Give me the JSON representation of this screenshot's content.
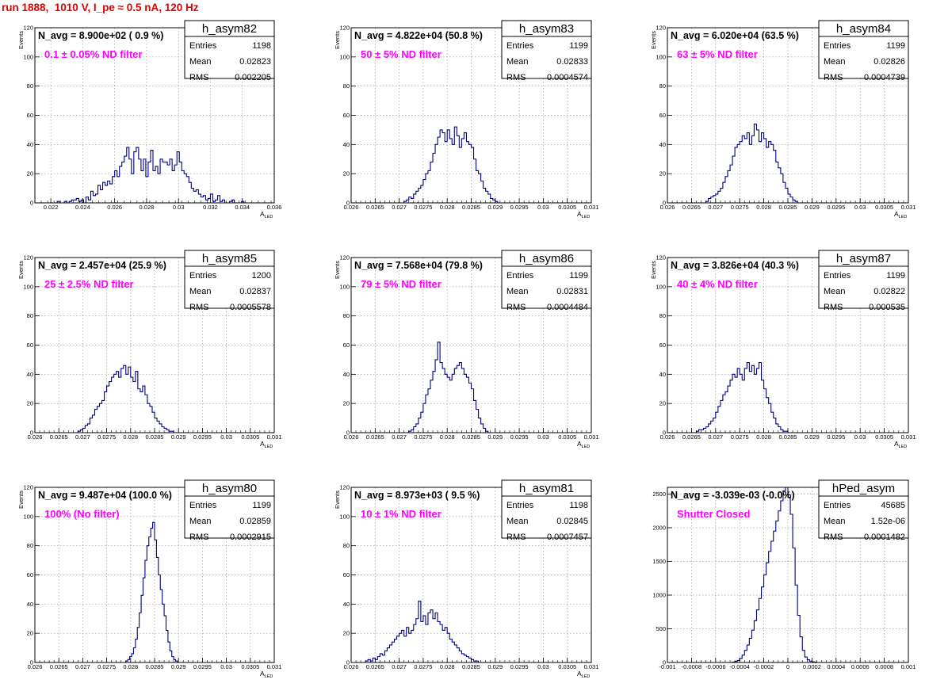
{
  "page": {
    "title": "run 1888,  1010 V, I_pe ≈ 0.5 nA, 120 Hz"
  },
  "colors": {
    "line": "#000080",
    "title": "#e00000",
    "annotation": "#ff00ff",
    "grid": "#9a9a9a"
  },
  "chart_data": [
    {
      "type": "histogram",
      "name": "h_asym82",
      "title": "N_avg = 8.900e+02 ( 0.9 %)",
      "note": "0.1 ± 0.05% ND filter",
      "stats": {
        "entries": "1198",
        "mean": "0.02823",
        "rms": "0.002205"
      },
      "xlabel": "A",
      "xlabel_sub": "LED",
      "ylabel": "Events",
      "grid": true,
      "xlim": [
        0.021,
        0.036
      ],
      "ylim": [
        0,
        120
      ],
      "xticks": [
        0.022,
        0.024,
        0.026,
        0.028,
        0.03,
        0.032,
        0.034,
        0.036
      ],
      "xtick_labels": [
        "0.022",
        "0.024",
        "0.026",
        "0.028",
        "0.03",
        "0.032",
        "0.034",
        "0.036"
      ],
      "yticks": [
        0,
        20,
        40,
        60,
        80,
        100,
        120
      ],
      "ytick_labels": [
        "0",
        "20",
        "40",
        "60",
        "80",
        "100",
        "120"
      ],
      "bin_start": 0.0224,
      "bin_width": 0.00015,
      "counts": [
        1,
        0,
        0,
        1,
        0,
        1,
        2,
        2,
        3,
        1,
        2,
        0,
        4,
        2,
        8,
        5,
        6,
        12,
        9,
        14,
        12,
        15,
        13,
        18,
        22,
        18,
        25,
        28,
        32,
        38,
        30,
        20,
        35,
        38,
        30,
        22,
        30,
        18,
        28,
        36,
        22,
        25,
        20,
        30,
        28,
        28,
        26,
        30,
        22,
        26,
        35,
        28,
        22,
        20,
        18,
        14,
        10,
        8,
        9,
        6,
        4,
        5,
        2,
        3,
        6,
        1,
        2,
        5,
        1,
        2,
        0,
        0,
        1,
        2,
        0,
        0,
        0,
        1
      ]
    },
    {
      "type": "histogram",
      "name": "h_asym83",
      "title": "N_avg = 4.822e+04 (50.8 %)",
      "note": "50 ± 5% ND filter",
      "stats": {
        "entries": "1199",
        "mean": "0.02833",
        "rms": "0.0004574"
      },
      "xlabel": "A",
      "xlabel_sub": "LED",
      "ylabel": "Events",
      "grid": true,
      "xlim": [
        0.026,
        0.031
      ],
      "ylim": [
        0,
        120
      ],
      "xticks": [
        0.026,
        0.0265,
        0.027,
        0.0275,
        0.028,
        0.0285,
        0.029,
        0.0295,
        0.03,
        0.0305,
        0.031
      ],
      "xtick_labels": [
        "0.026",
        "0.0265",
        "0.027",
        "0.0275",
        "0.028",
        "0.0285",
        "0.029",
        "0.0295",
        "0.03",
        "0.0305",
        "0.031"
      ],
      "yticks": [
        0,
        20,
        40,
        60,
        80,
        100,
        120
      ],
      "ytick_labels": [
        "0",
        "20",
        "40",
        "60",
        "80",
        "100",
        "120"
      ],
      "bin_start": 0.0271,
      "bin_width": 5e-05,
      "counts": [
        1,
        2,
        4,
        3,
        6,
        8,
        10,
        12,
        16,
        20,
        22,
        28,
        34,
        40,
        45,
        50,
        48,
        42,
        50,
        44,
        40,
        52,
        46,
        38,
        44,
        48,
        42,
        40,
        38,
        30,
        22,
        20,
        15,
        10,
        8,
        6,
        3,
        2,
        1
      ]
    },
    {
      "type": "histogram",
      "name": "h_asym84",
      "title": "N_avg = 6.020e+04 (63.5 %)",
      "note": "63 ± 5% ND filter",
      "stats": {
        "entries": "1199",
        "mean": "0.02826",
        "rms": "0.0004739"
      },
      "xlabel": "A",
      "xlabel_sub": "LED",
      "ylabel": "Events",
      "grid": true,
      "xlim": [
        0.026,
        0.031
      ],
      "ylim": [
        0,
        120
      ],
      "xticks": [
        0.026,
        0.0265,
        0.027,
        0.0275,
        0.028,
        0.0285,
        0.029,
        0.0295,
        0.03,
        0.0305,
        0.031
      ],
      "xtick_labels": [
        "0.026",
        "0.0265",
        "0.027",
        "0.0275",
        "0.028",
        "0.0285",
        "0.029",
        "0.0295",
        "0.03",
        "0.0305",
        "0.031"
      ],
      "yticks": [
        0,
        20,
        40,
        60,
        80,
        100,
        120
      ],
      "ytick_labels": [
        "0",
        "20",
        "40",
        "60",
        "80",
        "100",
        "120"
      ],
      "bin_start": 0.0268,
      "bin_width": 5e-05,
      "counts": [
        1,
        3,
        4,
        5,
        6,
        8,
        10,
        14,
        18,
        22,
        26,
        32,
        38,
        40,
        42,
        46,
        44,
        48,
        40,
        46,
        54,
        50,
        42,
        48,
        44,
        38,
        42,
        40,
        36,
        28,
        24,
        20,
        14,
        10,
        6,
        4,
        2,
        1
      ]
    },
    {
      "type": "histogram",
      "name": "h_asym85",
      "title": "N_avg = 2.457e+04 (25.9 %)",
      "note": "25 ± 2.5% ND filter",
      "stats": {
        "entries": "1200",
        "mean": "0.02837",
        "rms": "0.0005578"
      },
      "xlabel": "A",
      "xlabel_sub": "LED",
      "ylabel": "Events",
      "grid": true,
      "xlim": [
        0.026,
        0.031
      ],
      "ylim": [
        0,
        120
      ],
      "xticks": [
        0.026,
        0.0265,
        0.027,
        0.0275,
        0.028,
        0.0285,
        0.029,
        0.0295,
        0.03,
        0.0305,
        0.031
      ],
      "xtick_labels": [
        "0.026",
        "0.0265",
        "0.027",
        "0.0275",
        "0.028",
        "0.0285",
        "0.029",
        "0.0295",
        "0.03",
        "0.0305",
        "0.031"
      ],
      "yticks": [
        0,
        20,
        40,
        60,
        80,
        100,
        120
      ],
      "ytick_labels": [
        "0",
        "20",
        "40",
        "60",
        "80",
        "100",
        "120"
      ],
      "bin_start": 0.0269,
      "bin_width": 5e-05,
      "counts": [
        1,
        2,
        3,
        5,
        6,
        10,
        12,
        16,
        18,
        20,
        22,
        28,
        32,
        35,
        38,
        40,
        42,
        38,
        44,
        46,
        40,
        45,
        38,
        35,
        42,
        30,
        28,
        32,
        26,
        20,
        18,
        14,
        10,
        8,
        6,
        4,
        3,
        2,
        1,
        1
      ]
    },
    {
      "type": "histogram",
      "name": "h_asym86",
      "title": "N_avg = 7.568e+04 (79.8 %)",
      "note": "79 ± 5% ND filter",
      "stats": {
        "entries": "1199",
        "mean": "0.02831",
        "rms": "0.0004484"
      },
      "xlabel": "A",
      "xlabel_sub": "LED",
      "ylabel": "Events",
      "grid": true,
      "xlim": [
        0.026,
        0.031
      ],
      "ylim": [
        0,
        120
      ],
      "xticks": [
        0.026,
        0.0265,
        0.027,
        0.0275,
        0.028,
        0.0285,
        0.029,
        0.0295,
        0.03,
        0.0305,
        0.031
      ],
      "xtick_labels": [
        "0.026",
        "0.0265",
        "0.027",
        "0.0275",
        "0.028",
        "0.0285",
        "0.029",
        "0.0295",
        "0.03",
        "0.0305",
        "0.031"
      ],
      "yticks": [
        0,
        20,
        40,
        60,
        80,
        100,
        120
      ],
      "ytick_labels": [
        "0",
        "20",
        "40",
        "60",
        "80",
        "100",
        "120"
      ],
      "bin_start": 0.0272,
      "bin_width": 5e-05,
      "counts": [
        1,
        2,
        4,
        6,
        10,
        14,
        20,
        26,
        30,
        36,
        42,
        50,
        62,
        48,
        44,
        40,
        38,
        36,
        40,
        44,
        46,
        48,
        44,
        40,
        38,
        34,
        30,
        22,
        16,
        10,
        6,
        3,
        1
      ]
    },
    {
      "type": "histogram",
      "name": "h_asym87",
      "title": "N_avg = 3.826e+04 (40.3 %)",
      "note": "40 ± 4% ND filter",
      "stats": {
        "entries": "1199",
        "mean": "0.02822",
        "rms": "0.000535"
      },
      "xlabel": "A",
      "xlabel_sub": "LED",
      "ylabel": "Events",
      "grid": true,
      "xlim": [
        0.026,
        0.031
      ],
      "ylim": [
        0,
        120
      ],
      "xticks": [
        0.026,
        0.0265,
        0.027,
        0.0275,
        0.028,
        0.0285,
        0.029,
        0.0295,
        0.03,
        0.0305,
        0.031
      ],
      "xtick_labels": [
        "0.026",
        "0.0265",
        "0.027",
        "0.0275",
        "0.028",
        "0.0285",
        "0.029",
        "0.0295",
        "0.03",
        "0.0305",
        "0.031"
      ],
      "yticks": [
        0,
        20,
        40,
        60,
        80,
        100,
        120
      ],
      "ytick_labels": [
        "0",
        "20",
        "40",
        "60",
        "80",
        "100",
        "120"
      ],
      "bin_start": 0.0266,
      "bin_width": 5e-05,
      "counts": [
        1,
        2,
        2,
        3,
        4,
        6,
        8,
        10,
        14,
        18,
        22,
        26,
        28,
        32,
        36,
        40,
        38,
        44,
        40,
        36,
        44,
        48,
        42,
        46,
        40,
        44,
        48,
        36,
        30,
        24,
        20,
        14,
        10,
        6,
        4,
        2,
        1,
        1
      ]
    },
    {
      "type": "histogram",
      "name": "h_asym80",
      "title": "N_avg = 9.487e+04 (100.0 %)",
      "note": "100% (No filter)",
      "stats": {
        "entries": "1199",
        "mean": "0.02859",
        "rms": "0.0002915"
      },
      "xlabel": "A",
      "xlabel_sub": "LED",
      "ylabel": "Events",
      "grid": true,
      "xlim": [
        0.026,
        0.031
      ],
      "ylim": [
        0,
        120
      ],
      "xticks": [
        0.026,
        0.0265,
        0.027,
        0.0275,
        0.028,
        0.0285,
        0.029,
        0.0295,
        0.03,
        0.0305,
        0.031
      ],
      "xtick_labels": [
        "0.026",
        "0.0265",
        "0.027",
        "0.0275",
        "0.028",
        "0.0285",
        "0.029",
        "0.0295",
        "0.03",
        "0.0305",
        "0.031"
      ],
      "yticks": [
        0,
        20,
        40,
        60,
        80,
        100,
        120
      ],
      "ytick_labels": [
        "0",
        "20",
        "40",
        "60",
        "80",
        "100",
        "120"
      ],
      "bin_start": 0.0279,
      "bin_width": 4e-05,
      "counts": [
        1,
        2,
        4,
        6,
        10,
        16,
        24,
        34,
        46,
        58,
        70,
        80,
        86,
        92,
        96,
        84,
        72,
        60,
        50,
        40,
        32,
        22,
        14,
        8,
        4,
        2,
        1
      ]
    },
    {
      "type": "histogram",
      "name": "h_asym81",
      "title": "N_avg = 8.973e+03 ( 9.5 %)",
      "note": "10 ± 1% ND filter",
      "stats": {
        "entries": "1198",
        "mean": "0.02845",
        "rms": "0.0007457"
      },
      "xlabel": "A",
      "xlabel_sub": "LED",
      "ylabel": "Events",
      "grid": true,
      "xlim": [
        0.026,
        0.031
      ],
      "ylim": [
        0,
        120
      ],
      "xticks": [
        0.026,
        0.0265,
        0.027,
        0.0275,
        0.028,
        0.0285,
        0.029,
        0.0295,
        0.03,
        0.0305,
        0.031
      ],
      "xtick_labels": [
        "0.026",
        "0.0265",
        "0.027",
        "0.0275",
        "0.028",
        "0.0285",
        "0.029",
        "0.0295",
        "0.03",
        "0.0305",
        "0.031"
      ],
      "yticks": [
        0,
        20,
        40,
        60,
        80,
        100,
        120
      ],
      "ytick_labels": [
        "0",
        "20",
        "40",
        "60",
        "80",
        "100",
        "120"
      ],
      "bin_start": 0.0263,
      "bin_width": 5e-05,
      "counts": [
        1,
        2,
        1,
        3,
        2,
        4,
        6,
        5,
        8,
        10,
        12,
        14,
        16,
        18,
        20,
        22,
        18,
        24,
        20,
        22,
        26,
        30,
        42,
        28,
        32,
        26,
        34,
        36,
        30,
        34,
        28,
        26,
        22,
        24,
        20,
        16,
        14,
        12,
        10,
        8,
        6,
        5,
        4,
        3,
        2,
        1,
        1
      ]
    },
    {
      "type": "histogram",
      "name": "hPed_asym",
      "title": "N_avg = -3.039e-03 (-0.0%)",
      "note": "Shutter Closed",
      "stats": {
        "entries": "45685",
        "mean": "1.52e-06",
        "rms": "0.0001482"
      },
      "xlabel": "",
      "xlabel_sub": "",
      "ylabel": "",
      "grid": true,
      "xlim": [
        -0.001,
        0.001
      ],
      "ylim": [
        0,
        2600
      ],
      "xticks": [
        -0.001,
        -0.0008,
        -0.0006,
        -0.0004,
        -0.0002,
        0,
        0.0002,
        0.0004,
        0.0006,
        0.0008,
        0.001
      ],
      "xtick_labels": [
        "-0.001",
        "-0.0008",
        "-0.0006",
        "-0.0004",
        "-0.0002",
        "0",
        "0.0002",
        "0.0004",
        "0.0006",
        "0.0008",
        "0.001"
      ],
      "yticks": [
        0,
        500,
        1000,
        1500,
        2000,
        2500
      ],
      "ytick_labels": [
        "0",
        "500",
        "1000",
        "1500",
        "2000",
        "2500"
      ],
      "bin_start": -0.00046,
      "bin_width": 2e-05,
      "counts": [
        5,
        15,
        30,
        60,
        110,
        180,
        260,
        360,
        480,
        620,
        780,
        950,
        1120,
        1300,
        1480,
        1650,
        1800,
        1950,
        2100,
        2250,
        2400,
        2550,
        2600,
        2450,
        2200,
        1700,
        1150,
        700,
        380,
        180,
        80,
        40,
        20,
        10,
        5
      ]
    }
  ]
}
